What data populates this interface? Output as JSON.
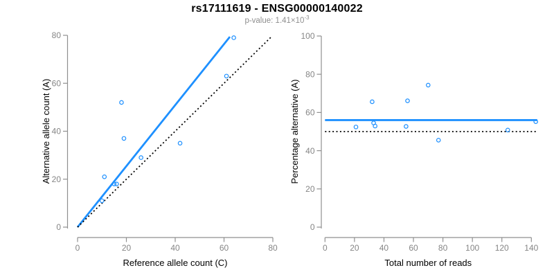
{
  "header": {
    "title": "rs17111619 - ENSG00000140022",
    "pvalue_prefix": "p-value: ",
    "pvalue_mantissa": "1.41×10",
    "pvalue_exponent": "-3"
  },
  "colors": {
    "accent_blue": "#1E90FF",
    "dotted_line": "#000000",
    "axis_line_gray": "#8f8f8f",
    "tick_label_gray": "#858585",
    "axis_title_black": "#000000",
    "subtitle_gray": "#8e8e8e",
    "background": "#ffffff"
  },
  "chart_data": [
    {
      "type": "scatter",
      "panel": "left-allele-counts",
      "xlabel": "Reference allele count (C)",
      "ylabel": "Alternative allele count (A)",
      "xlim": [
        0,
        80
      ],
      "ylim": [
        0,
        80
      ],
      "xticks": [
        0,
        20,
        40,
        60,
        80
      ],
      "yticks": [
        0,
        20,
        40,
        60,
        80
      ],
      "grid": false,
      "legend": "none",
      "marker": "open-circle",
      "points": [
        [
          10,
          11
        ],
        [
          11,
          21
        ],
        [
          15,
          18
        ],
        [
          16,
          18
        ],
        [
          18,
          52
        ],
        [
          19,
          37
        ],
        [
          26,
          29
        ],
        [
          42,
          35
        ],
        [
          61,
          63
        ],
        [
          64,
          79
        ]
      ],
      "lines": [
        {
          "name": "fitted-ratio-line",
          "style": "solid",
          "color": "accent_blue",
          "from": [
            0,
            0
          ],
          "to": [
            62.4,
            79.4
          ]
        },
        {
          "name": "identity-line",
          "style": "dotted",
          "color": "dotted_line",
          "from": [
            0,
            0
          ],
          "to": [
            79.5,
            79.5
          ]
        }
      ]
    },
    {
      "type": "scatter",
      "panel": "right-percentage",
      "xlabel": "Total number of reads",
      "ylabel": "Percentage alternative (A)",
      "xlim": [
        0,
        145
      ],
      "ylim": [
        0,
        100
      ],
      "xticks": [
        0,
        20,
        40,
        60,
        80,
        100,
        120,
        140
      ],
      "yticks": [
        0,
        20,
        40,
        60,
        80,
        100
      ],
      "grid": false,
      "legend": "none",
      "marker": "open-circle",
      "points": [
        [
          21,
          52.4
        ],
        [
          32,
          65.6
        ],
        [
          33,
          54.5
        ],
        [
          34,
          52.9
        ],
        [
          55,
          52.7
        ],
        [
          56,
          66.1
        ],
        [
          70,
          74.3
        ],
        [
          77,
          45.5
        ],
        [
          124,
          50.8
        ],
        [
          143,
          55.2
        ]
      ],
      "lines": [
        {
          "name": "mean-percentage-line",
          "style": "solid",
          "color": "accent_blue",
          "from": [
            0,
            56
          ],
          "to": [
            144,
            56
          ]
        },
        {
          "name": "fifty-percent-line",
          "style": "dotted",
          "color": "dotted_line",
          "from": [
            0,
            50
          ],
          "to": [
            144,
            50
          ]
        }
      ]
    }
  ]
}
